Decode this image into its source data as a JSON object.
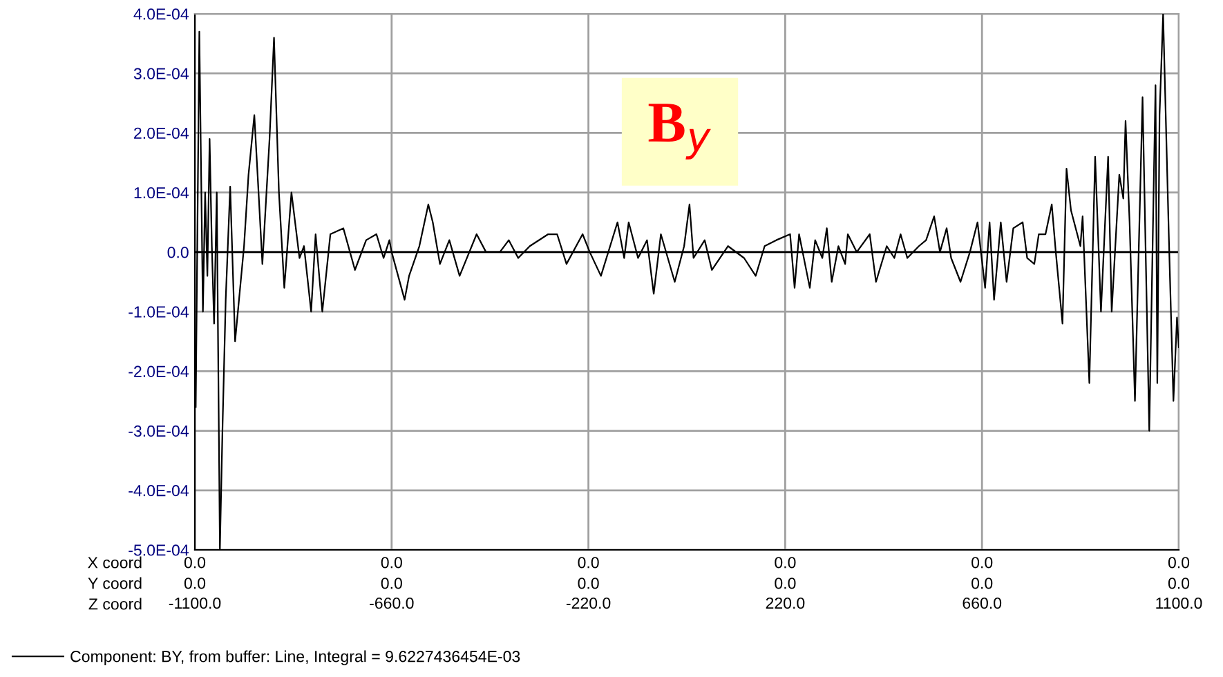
{
  "chart_data": {
    "type": "line",
    "title": "B$_{y}$",
    "annotations": [
      "X coord",
      "Y coord",
      "Z coord",
      "0.0",
      "0.0",
      "0.0",
      "0.0",
      "0.0",
      "0.0",
      "0.0",
      "0.0",
      "0.0",
      "0.0",
      "0.0",
      "0.0"
    ],
    "x": [
      -1098,
      -1090,
      -1082,
      -1077,
      -1072,
      -1067,
      -1062,
      -1057,
      -1051,
      -1044,
      -1038,
      -1031,
      -1021,
      -1010,
      -990,
      -980,
      -967,
      -959,
      -949,
      -933,
      -923,
      -912,
      -900,
      -884,
      -866,
      -856,
      -840,
      -830,
      -815,
      -797,
      -768,
      -742,
      -717,
      -694,
      -678,
      -665,
      -660,
      -631,
      -621,
      -598,
      -578,
      -568,
      -552,
      -531,
      -508,
      -470,
      -449,
      -418,
      -398,
      -377,
      -351,
      -310,
      -290,
      -269,
      -233,
      -217,
      -192,
      -155,
      -140,
      -130,
      -109,
      -89,
      -74,
      -58,
      -27,
      -6,
      6,
      15,
      40,
      56,
      92,
      128,
      154,
      174,
      200,
      231,
      241,
      251,
      275,
      287,
      303,
      313,
      324,
      339,
      354,
      360,
      380,
      409,
      423,
      447,
      464,
      478,
      493,
      519,
      535,
      553,
      566,
      581,
      591,
      612,
      633,
      650,
      667,
      677,
      687,
      702,
      715,
      730,
      751,
      761,
      777,
      787,
      802,
      816,
      825,
      840,
      849,
      859,
      880,
      885,
      900,
      913,
      926,
      942,
      950,
      967,
      976,
      981,
      990,
      1002,
      1019,
      1034,
      1048,
      1052,
      1057,
      1065,
      1078,
      1088,
      1096,
      1100
    ],
    "series": [
      {
        "name": "Component: BY, from buffer: Line, Integral = 9.6227436454E-03",
        "color": "#000000",
        "values": [
          -0.00026,
          0.00037,
          -0.0001,
          0.0001,
          -4e-05,
          0.00019,
          1e-05,
          -0.00012,
          0.0001,
          -0.0005,
          -0.00029,
          -8e-05,
          0.00011,
          -0.00015,
          1e-05,
          0.00013,
          0.00023,
          0.00012,
          -2e-05,
          0.00019,
          0.00036,
          0.0001,
          -6e-05,
          0.0001,
          -1e-05,
          1e-05,
          -0.0001,
          3e-05,
          -0.0001,
          3e-05,
          4e-05,
          -3e-05,
          2e-05,
          3e-05,
          -1e-05,
          2e-05,
          0,
          -8e-05,
          -4e-05,
          1e-05,
          8e-05,
          5e-05,
          -2e-05,
          2e-05,
          -4e-05,
          3e-05,
          0,
          0,
          2e-05,
          -1e-05,
          1e-05,
          3e-05,
          3e-05,
          -2e-05,
          3e-05,
          0,
          -4e-05,
          5e-05,
          -1e-05,
          5e-05,
          -1e-05,
          2e-05,
          -7e-05,
          3e-05,
          -5e-05,
          1e-05,
          8e-05,
          -1e-05,
          2e-05,
          -3e-05,
          1e-05,
          -1e-05,
          -4e-05,
          1e-05,
          2e-05,
          3e-05,
          -6e-05,
          3e-05,
          -6e-05,
          2e-05,
          -1e-05,
          4e-05,
          -5e-05,
          1e-05,
          -2e-05,
          3e-05,
          0,
          3e-05,
          -5e-05,
          1e-05,
          -1e-05,
          3e-05,
          -1e-05,
          1e-05,
          2e-05,
          6e-05,
          0,
          4e-05,
          -1e-05,
          -5e-05,
          0,
          5e-05,
          -6e-05,
          5e-05,
          -8e-05,
          5e-05,
          -5e-05,
          4e-05,
          5e-05,
          -1e-05,
          -2e-05,
          3e-05,
          3e-05,
          8e-05,
          0,
          -0.00012,
          0.00014,
          7e-05,
          1e-05,
          6e-05,
          -0.00022,
          0.00016,
          -0.0001,
          0.00016,
          -0.0001,
          0.00013,
          9e-05,
          0.00022,
          5e-05,
          -0.00025,
          0.00026,
          -0.0003,
          0.00028,
          -0.00022,
          0.00023,
          0.0004,
          2e-05,
          -0.00025,
          -0.00011,
          -0.00016
        ]
      }
    ],
    "xlim": [
      -1100,
      1100
    ],
    "xticks": [
      {
        "value": -1100,
        "label": "-1100.0"
      },
      {
        "value": -660,
        "label": "-660.0"
      },
      {
        "value": -220,
        "label": "-220.0"
      },
      {
        "value": 220,
        "label": "220.0"
      },
      {
        "value": 660,
        "label": "660.0"
      },
      {
        "value": 1100,
        "label": "1100.0"
      }
    ],
    "ylim": [
      -0.0005,
      0.0004
    ],
    "yticks": [
      {
        "value": -0.0005,
        "label": "-5.0E-04"
      },
      {
        "value": -0.0004,
        "label": "-4.0E-04"
      },
      {
        "value": -0.0003,
        "label": "-3.0E-04"
      },
      {
        "value": -0.0002,
        "label": "-2.0E-04"
      },
      {
        "value": -0.0001,
        "label": "-1.0E-04"
      },
      {
        "value": 0,
        "label": "0.0"
      },
      {
        "value": 0.0001,
        "label": "1.0E-04"
      },
      {
        "value": 0.0002,
        "label": "2.0E-04"
      },
      {
        "value": 0.0003,
        "label": "3.0E-04"
      },
      {
        "value": 0.0004,
        "label": "4.0E-04"
      }
    ],
    "ref_lines": [
      {
        "axis": "y",
        "value": 0,
        "color": "#000000"
      }
    ],
    "grid": true,
    "legend": "bottom left",
    "marker": "none",
    "line_style": "solid"
  }
}
